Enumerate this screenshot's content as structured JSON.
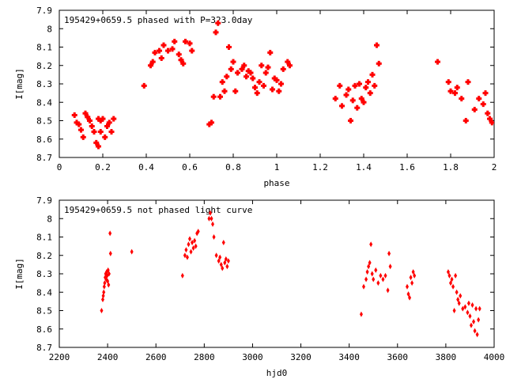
{
  "chart_data": [
    {
      "type": "scatter",
      "title": "195429+0659.5 phased with P=323.0day",
      "xlabel": "phase",
      "ylabel": "I[mag]",
      "xlim": [
        0,
        2
      ],
      "ylim": [
        8.7,
        7.9
      ],
      "y_inverted": true,
      "x_ticks": [
        "0",
        "0.2",
        "0.4",
        "0.6",
        "0.8",
        "1",
        "1.2",
        "1.4",
        "1.6",
        "1.8",
        "2"
      ],
      "y_ticks": [
        "7.9",
        "8",
        "8.1",
        "8.2",
        "8.3",
        "8.4",
        "8.5",
        "8.6",
        "8.7"
      ],
      "marker_color": "#ff0000",
      "marker": "filled-square",
      "series": [
        {
          "x": [
            0.07,
            0.08,
            0.09,
            0.1,
            0.11,
            0.12,
            0.13,
            0.14,
            0.15,
            0.16,
            0.17,
            0.18,
            0.18,
            0.19,
            0.19,
            0.2,
            0.21,
            0.22,
            0.23,
            0.24,
            0.25,
            0.39,
            0.42,
            0.43,
            0.44,
            0.46,
            0.47,
            0.48,
            0.5,
            0.52,
            0.53,
            0.55,
            0.56,
            0.57,
            0.58,
            0.6,
            0.61,
            0.69,
            0.7,
            0.71,
            0.72,
            0.73,
            0.74,
            0.75,
            0.76,
            0.77,
            0.78,
            0.79,
            0.8,
            0.81,
            0.82,
            0.84,
            0.85,
            0.86,
            0.87,
            0.88,
            0.89,
            0.9,
            0.91,
            0.92,
            0.93,
            0.94,
            0.95,
            0.96,
            0.97,
            0.98,
            0.99,
            1.0,
            1.01,
            1.02,
            1.03,
            1.05,
            1.06,
            1.27,
            1.29,
            1.3,
            1.32,
            1.33,
            1.34,
            1.35,
            1.36,
            1.37,
            1.38,
            1.39,
            1.4,
            1.41,
            1.42,
            1.43,
            1.44,
            1.45,
            1.46,
            1.47,
            1.74,
            1.79,
            1.8,
            1.82,
            1.83,
            1.85,
            1.87,
            1.88,
            1.91,
            1.93,
            1.95,
            1.96,
            1.97,
            1.98,
            1.99
          ],
          "y": [
            8.47,
            8.51,
            8.52,
            8.55,
            8.59,
            8.46,
            8.48,
            8.5,
            8.53,
            8.56,
            8.62,
            8.49,
            8.64,
            8.56,
            8.5,
            8.49,
            8.59,
            8.53,
            8.51,
            8.56,
            8.49,
            8.31,
            8.2,
            8.18,
            8.13,
            8.12,
            8.16,
            8.09,
            8.12,
            8.11,
            8.07,
            8.14,
            8.17,
            8.19,
            8.07,
            8.08,
            8.12,
            8.52,
            8.51,
            8.37,
            8.02,
            7.97,
            8.37,
            8.29,
            8.34,
            8.26,
            8.1,
            8.22,
            8.18,
            8.34,
            8.24,
            8.22,
            8.2,
            8.26,
            8.23,
            8.24,
            8.27,
            8.32,
            8.35,
            8.29,
            8.2,
            8.31,
            8.24,
            8.21,
            8.13,
            8.33,
            8.27,
            8.28,
            8.34,
            8.3,
            8.22,
            8.18,
            8.2,
            8.38,
            8.31,
            8.42,
            8.36,
            8.33,
            8.5,
            8.39,
            8.31,
            8.43,
            8.3,
            8.38,
            8.4,
            8.32,
            8.29,
            8.35,
            8.25,
            8.31,
            8.09,
            8.19,
            8.18,
            8.29,
            8.34,
            8.35,
            8.32,
            8.38,
            8.5,
            8.29,
            8.44,
            8.38,
            8.41,
            8.35,
            8.46,
            8.49,
            8.51
          ]
        }
      ]
    },
    {
      "type": "scatter",
      "title": "195429+0659.5 not phased light curve",
      "xlabel": "hjd0",
      "ylabel": "I[mag]",
      "xlim": [
        2200,
        4000
      ],
      "ylim": [
        8.7,
        7.9
      ],
      "y_inverted": true,
      "x_ticks": [
        "2200",
        "2400",
        "2600",
        "2800",
        "3000",
        "3200",
        "3400",
        "3600",
        "3800",
        "4000"
      ],
      "y_ticks": [
        "7.9",
        "8",
        "8.1",
        "8.2",
        "8.3",
        "8.4",
        "8.5",
        "8.6",
        "8.7"
      ],
      "marker_color": "#ff0000",
      "marker": "filled-diamond",
      "series": [
        {
          "x": [
            2375,
            2380,
            2382,
            2384,
            2386,
            2388,
            2390,
            2392,
            2394,
            2396,
            2398,
            2400,
            2402,
            2404,
            2406,
            2410,
            2412,
            2500,
            2710,
            2720,
            2725,
            2730,
            2735,
            2740,
            2745,
            2750,
            2755,
            2760,
            2765,
            2770,
            2775,
            2820,
            2825,
            2830,
            2835,
            2840,
            2850,
            2860,
            2865,
            2870,
            2875,
            2880,
            2885,
            2890,
            2895,
            2900,
            3450,
            3460,
            3470,
            3475,
            3480,
            3485,
            3490,
            3495,
            3500,
            3510,
            3520,
            3530,
            3540,
            3550,
            3560,
            3565,
            3570,
            3640,
            3645,
            3650,
            3655,
            3660,
            3665,
            3670,
            3810,
            3815,
            3820,
            3825,
            3830,
            3835,
            3840,
            3845,
            3850,
            3855,
            3860,
            3870,
            3880,
            3890,
            3895,
            3900,
            3905,
            3910,
            3915,
            3920,
            3925,
            3930,
            3935,
            3940
          ],
          "y": [
            8.5,
            8.44,
            8.42,
            8.4,
            8.37,
            8.35,
            8.32,
            8.3,
            8.33,
            8.29,
            8.31,
            8.34,
            8.28,
            8.36,
            8.3,
            8.08,
            8.19,
            8.18,
            8.31,
            8.2,
            8.17,
            8.21,
            8.14,
            8.11,
            8.18,
            8.13,
            8.16,
            8.12,
            8.15,
            8.08,
            8.07,
            8.0,
            7.97,
            8.0,
            8.03,
            8.1,
            8.2,
            8.23,
            8.21,
            8.25,
            8.27,
            8.13,
            8.24,
            8.22,
            8.26,
            8.23,
            8.52,
            8.37,
            8.33,
            8.29,
            8.26,
            8.24,
            8.14,
            8.3,
            8.33,
            8.28,
            8.35,
            8.31,
            8.33,
            8.31,
            8.39,
            8.19,
            8.26,
            8.37,
            8.41,
            8.43,
            8.32,
            8.35,
            8.29,
            8.31,
            8.29,
            8.31,
            8.35,
            8.33,
            8.37,
            8.5,
            8.31,
            8.4,
            8.44,
            8.46,
            8.42,
            8.49,
            8.48,
            8.51,
            8.46,
            8.53,
            8.58,
            8.47,
            8.56,
            8.61,
            8.49,
            8.63,
            8.55,
            8.49
          ]
        }
      ]
    }
  ]
}
